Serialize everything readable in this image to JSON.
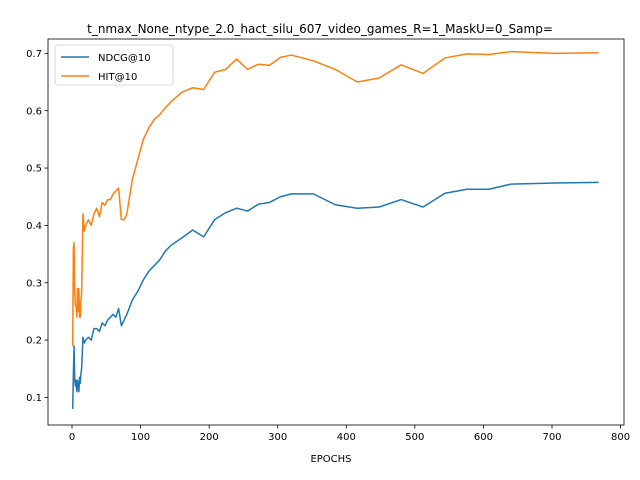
{
  "chart_data": {
    "type": "line",
    "title": "t_nmax_None_ntype_2.0_hact_silu_607_video_games_R=1_MaskU=0_Samp=",
    "xlabel": "EPOCHS",
    "ylabel": "",
    "xlim": [
      -35,
      805
    ],
    "ylim": [
      0.052,
      0.725
    ],
    "xticks": [
      0,
      100,
      200,
      300,
      400,
      500,
      600,
      700,
      800
    ],
    "yticks": [
      0.1,
      0.2,
      0.3,
      0.4,
      0.5,
      0.6,
      0.7
    ],
    "xtick_labels": [
      "0",
      "100",
      "200",
      "300",
      "400",
      "500",
      "600",
      "700",
      "800"
    ],
    "ytick_labels": [
      "0.1",
      "0.2",
      "0.3",
      "0.4",
      "0.5",
      "0.6",
      "0.7"
    ],
    "grid": false,
    "legend_position": "top-left",
    "series": [
      {
        "name": "NDCG@10",
        "color": "#1f77b4",
        "x": [
          1,
          2,
          3,
          4,
          5,
          6,
          7,
          8,
          9,
          10,
          11,
          12,
          13,
          14,
          16,
          18,
          20,
          24,
          28,
          32,
          36,
          40,
          44,
          48,
          52,
          56,
          60,
          64,
          68,
          72,
          76,
          80,
          88,
          96,
          104,
          112,
          120,
          128,
          136,
          144,
          160,
          176,
          192,
          208,
          224,
          240,
          256,
          272,
          288,
          304,
          320,
          352,
          384,
          416,
          448,
          480,
          512,
          544,
          576,
          608,
          640,
          704,
          768
        ],
        "y": [
          0.08,
          0.14,
          0.19,
          0.13,
          0.12,
          0.13,
          0.11,
          0.13,
          0.12,
          0.11,
          0.135,
          0.125,
          0.14,
          0.15,
          0.205,
          0.195,
          0.2,
          0.205,
          0.2,
          0.22,
          0.22,
          0.215,
          0.23,
          0.225,
          0.235,
          0.24,
          0.245,
          0.24,
          0.255,
          0.225,
          0.235,
          0.245,
          0.27,
          0.285,
          0.305,
          0.32,
          0.33,
          0.34,
          0.355,
          0.365,
          0.378,
          0.392,
          0.38,
          0.41,
          0.422,
          0.43,
          0.425,
          0.437,
          0.44,
          0.45,
          0.455,
          0.455,
          0.436,
          0.43,
          0.432,
          0.445,
          0.432,
          0.456,
          0.463,
          0.463,
          0.472,
          0.474,
          0.475
        ]
      },
      {
        "name": "HIT@10",
        "color": "#ff7f0e",
        "x": [
          1,
          2,
          3,
          4,
          5,
          6,
          7,
          8,
          9,
          10,
          11,
          12,
          13,
          14,
          16,
          18,
          20,
          24,
          28,
          32,
          36,
          40,
          44,
          48,
          52,
          56,
          60,
          64,
          68,
          72,
          76,
          80,
          88,
          96,
          104,
          112,
          120,
          128,
          136,
          144,
          160,
          176,
          192,
          208,
          224,
          240,
          256,
          272,
          288,
          304,
          320,
          352,
          384,
          416,
          448,
          480,
          512,
          544,
          576,
          608,
          640,
          704,
          768
        ],
        "y": [
          0.19,
          0.36,
          0.37,
          0.28,
          0.26,
          0.26,
          0.24,
          0.29,
          0.25,
          0.29,
          0.24,
          0.24,
          0.27,
          0.28,
          0.42,
          0.39,
          0.4,
          0.41,
          0.4,
          0.42,
          0.43,
          0.415,
          0.44,
          0.435,
          0.445,
          0.445,
          0.455,
          0.46,
          0.465,
          0.41,
          0.41,
          0.42,
          0.48,
          0.515,
          0.55,
          0.57,
          0.585,
          0.593,
          0.605,
          0.615,
          0.632,
          0.64,
          0.637,
          0.667,
          0.672,
          0.69,
          0.672,
          0.681,
          0.679,
          0.693,
          0.697,
          0.687,
          0.672,
          0.65,
          0.657,
          0.68,
          0.665,
          0.692,
          0.699,
          0.698,
          0.703,
          0.7,
          0.701
        ]
      }
    ]
  }
}
